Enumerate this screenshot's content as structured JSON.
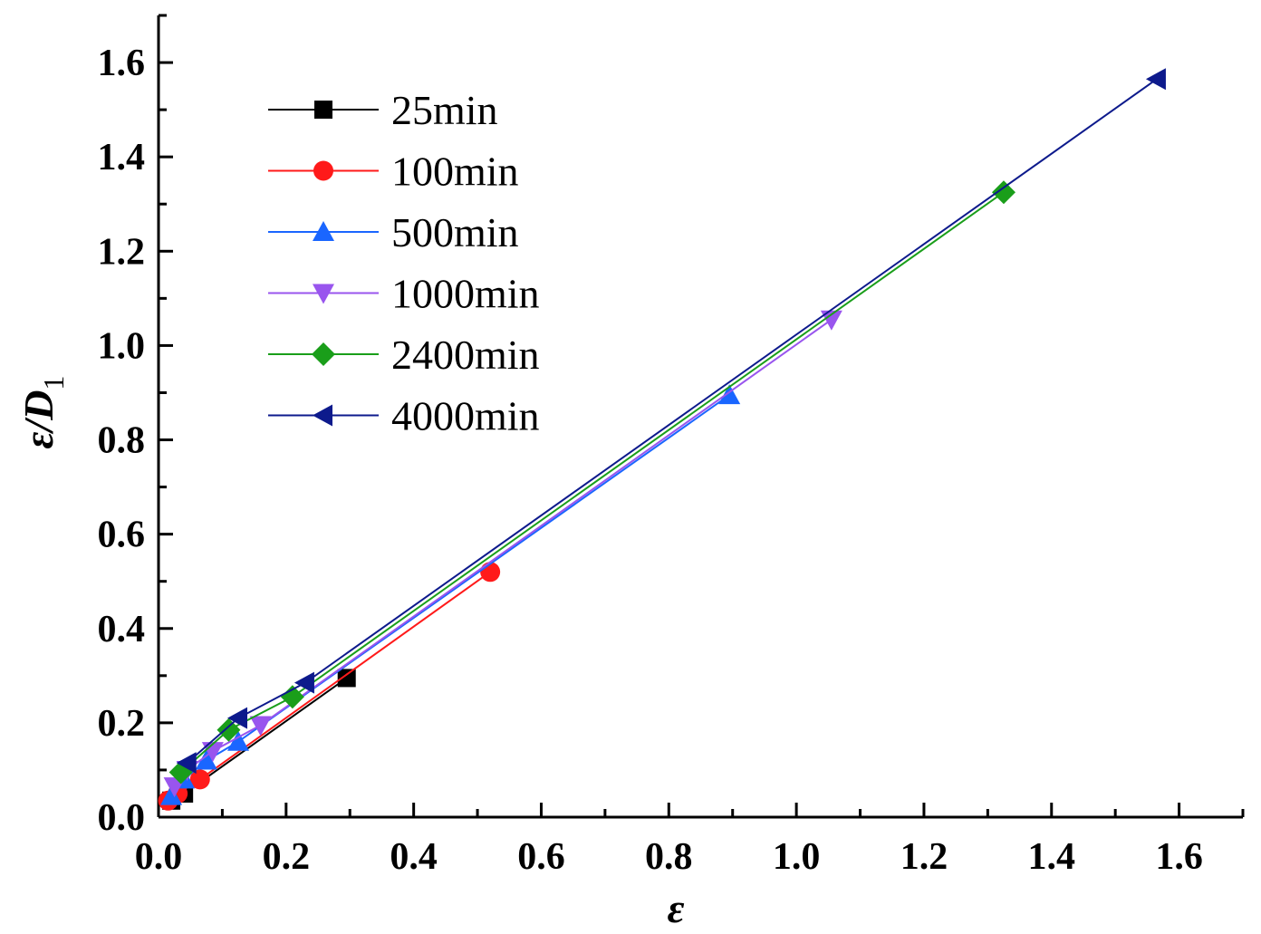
{
  "chart_data": {
    "type": "line",
    "xlabel": "ε",
    "ylabel": "ε/D",
    "ylabel_subscript": "1",
    "xlim": [
      0.0,
      1.7
    ],
    "ylim": [
      0.0,
      1.7
    ],
    "xticks": [
      "0.0",
      "0.2",
      "0.4",
      "0.6",
      "0.8",
      "1.0",
      "1.2",
      "1.4",
      "1.6"
    ],
    "xtick_values": [
      0.0,
      0.2,
      0.4,
      0.6,
      0.8,
      1.0,
      1.2,
      1.4,
      1.6
    ],
    "yticks": [
      "0.0",
      "0.2",
      "0.4",
      "0.6",
      "0.8",
      "1.0",
      "1.2",
      "1.4",
      "1.6"
    ],
    "ytick_values": [
      0.0,
      0.2,
      0.4,
      0.6,
      0.8,
      1.0,
      1.2,
      1.4,
      1.6
    ],
    "grid": false,
    "legend_position": "top-left",
    "series": [
      {
        "name": "25min",
        "color": "#000000",
        "marker": "square",
        "x": [
          0.02,
          0.04,
          0.295
        ],
        "y": [
          0.035,
          0.05,
          0.295
        ]
      },
      {
        "name": "100min",
        "color": "#ff1a1a",
        "marker": "circle",
        "x": [
          0.015,
          0.03,
          0.065,
          0.52
        ],
        "y": [
          0.035,
          0.05,
          0.08,
          0.52
        ]
      },
      {
        "name": "500min",
        "color": "#1a66ff",
        "marker": "triangle-up",
        "x": [
          0.02,
          0.04,
          0.075,
          0.125,
          0.895
        ],
        "y": [
          0.045,
          0.08,
          0.12,
          0.16,
          0.895
        ]
      },
      {
        "name": "1000min",
        "color": "#9955ee",
        "marker": "triangle-down",
        "x": [
          0.025,
          0.045,
          0.085,
          0.16,
          1.055
        ],
        "y": [
          0.065,
          0.1,
          0.14,
          0.195,
          1.055
        ]
      },
      {
        "name": "2400min",
        "color": "#1a9e1a",
        "marker": "diamond",
        "x": [
          0.035,
          0.11,
          0.21,
          1.325
        ],
        "y": [
          0.095,
          0.185,
          0.255,
          1.325
        ]
      },
      {
        "name": "4000min",
        "color": "#0d1a8c",
        "marker": "triangle-left",
        "x": [
          0.045,
          0.125,
          0.23,
          1.565
        ],
        "y": [
          0.115,
          0.21,
          0.285,
          1.565
        ]
      }
    ]
  }
}
